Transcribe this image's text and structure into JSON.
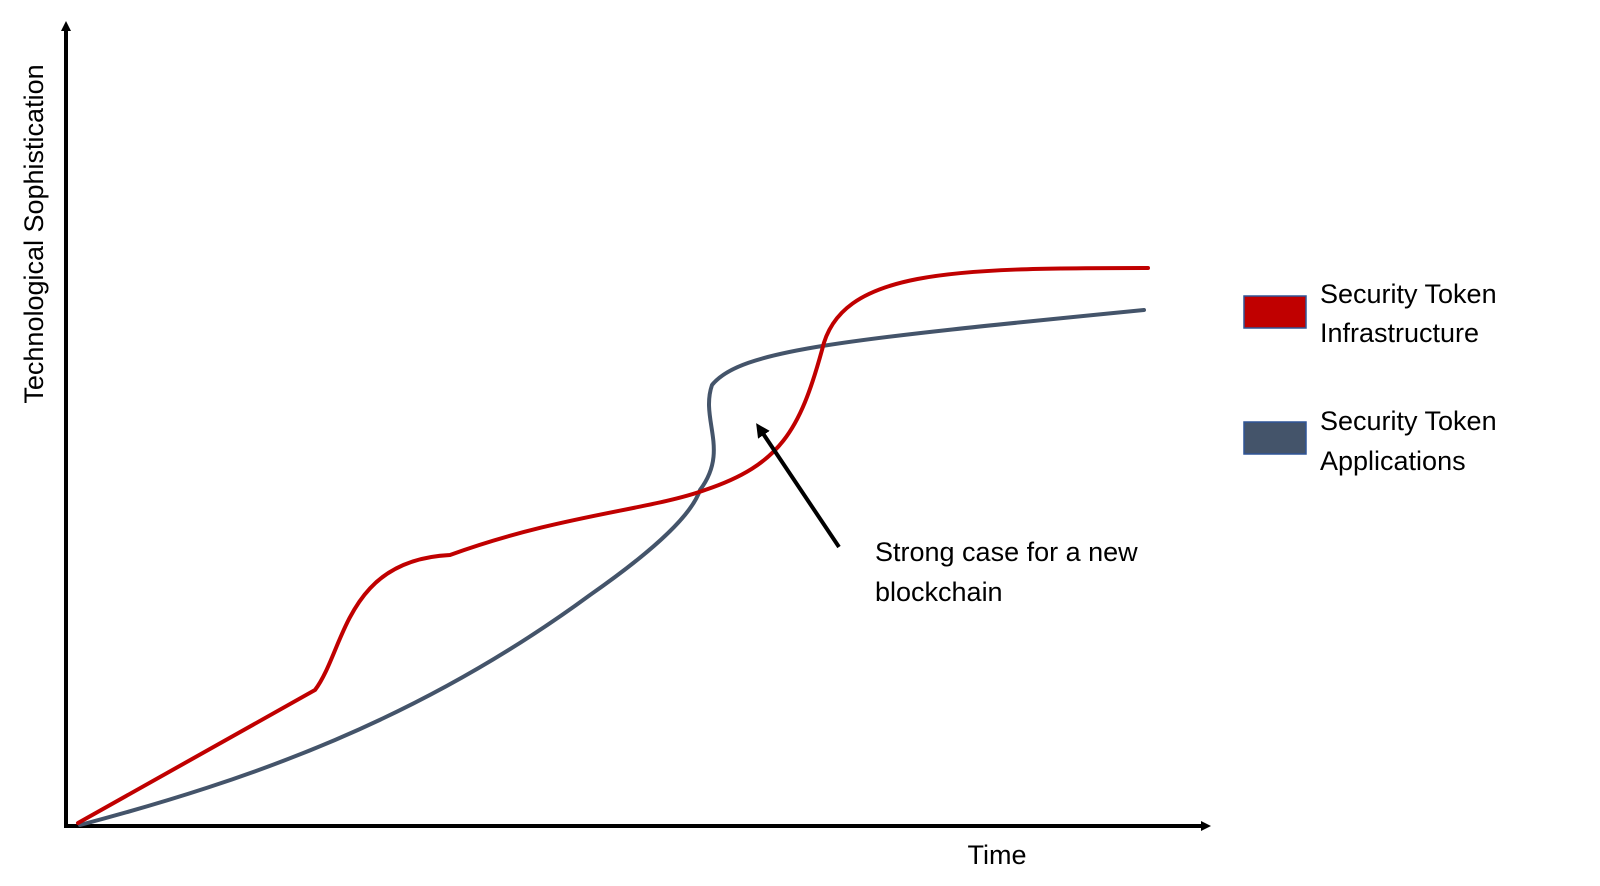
{
  "axes": {
    "y_label": "Technological Sophistication",
    "x_label": "Time"
  },
  "legend": [
    {
      "line1": "Security Token",
      "line2": "Infrastructure",
      "color": "#C00000"
    },
    {
      "line1": "Security Token",
      "line2": "Applications",
      "color": "#44546A"
    }
  ],
  "annotation": {
    "line1": "Strong case for a new",
    "line2": "blockchain"
  },
  "colors": {
    "infrastructure": "#C00000",
    "applications": "#44546A",
    "axis": "#000000"
  }
}
